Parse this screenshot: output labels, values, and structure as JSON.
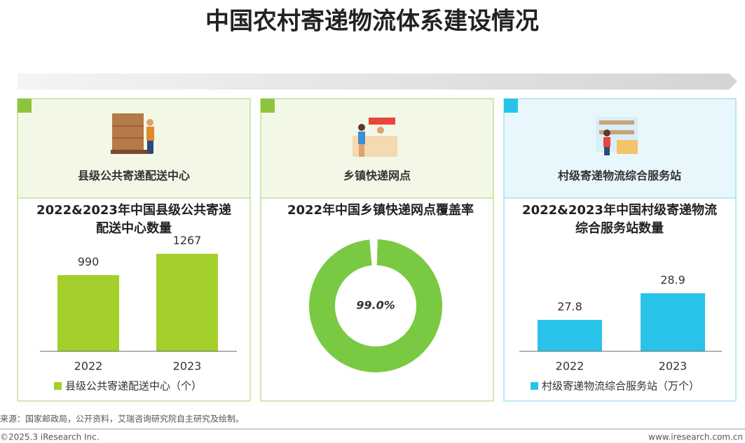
{
  "title": "中国农村寄递物流体系建设情况",
  "panels": [
    {
      "label": "县级公共寄递配送中心"
    },
    {
      "label": "乡镇快递网点"
    },
    {
      "label": "村级寄递物流综合服务站"
    }
  ],
  "chart_data": [
    {
      "type": "bar",
      "title": "2022&2023年中国县级公共寄递配送中心数量",
      "categories": [
        "2022",
        "2023"
      ],
      "series": [
        {
          "name": "县级公共寄递配送中心（个）",
          "color": "#a3cf2a",
          "values": [
            990,
            1267
          ]
        }
      ],
      "ylim": [
        0,
        1600
      ]
    },
    {
      "type": "donut",
      "title": "2022年中国乡镇快递网点覆盖率",
      "values": [
        99
      ],
      "value_labels": [
        "99.0%"
      ],
      "color": "#7ac943"
    },
    {
      "type": "bar",
      "title": "2022&2023年中国村级寄递物流综合服务站数量",
      "categories": [
        "2022",
        "2023"
      ],
      "series": [
        {
          "name": "村级寄递物流综合服务站（万个）",
          "color": "#29c3ea",
          "values": [
            27.8,
            28.9
          ]
        }
      ],
      "ylim": [
        26.5,
        30
      ]
    }
  ],
  "source": "来源：国家邮政局，公开资料，艾瑞咨询研究院自主研究及绘制。",
  "copyright": "©2025.3 iResearch Inc.",
  "website": "www.iresearch.com.cn"
}
